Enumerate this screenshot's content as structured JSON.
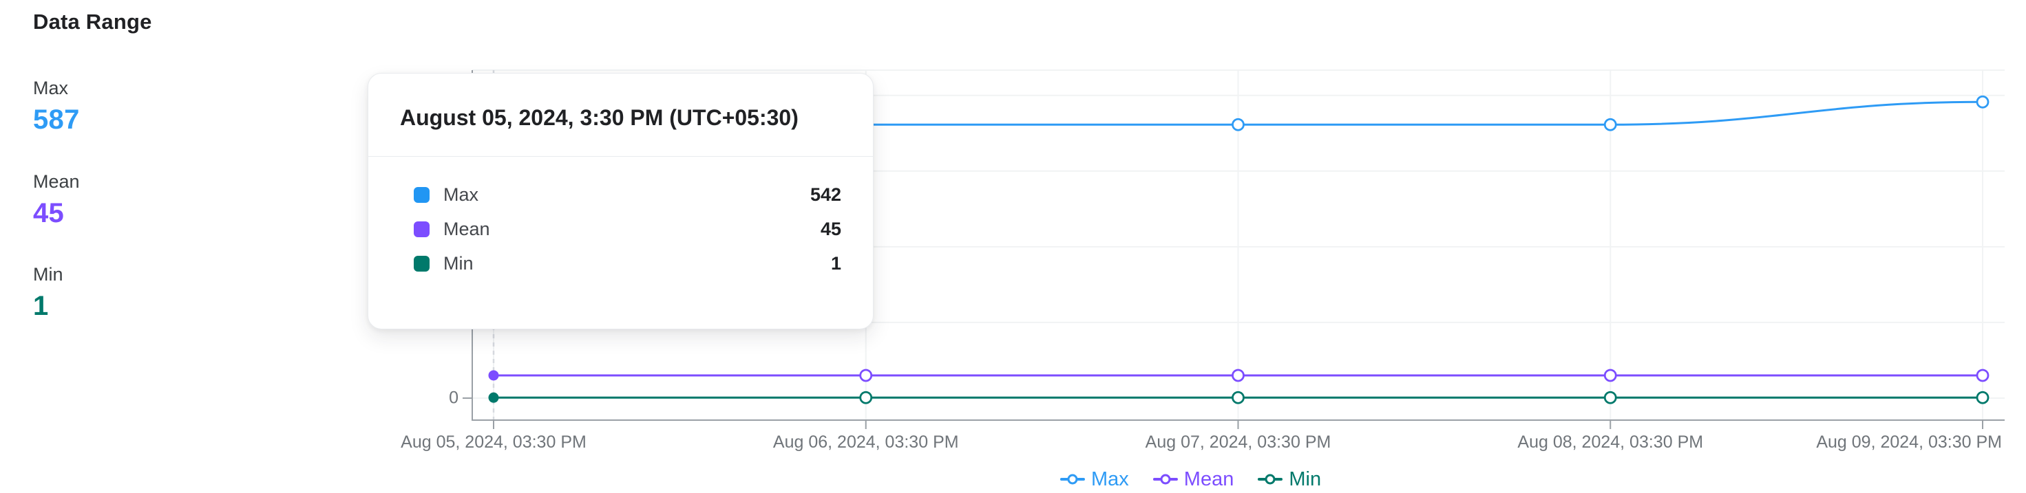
{
  "page": {
    "title": "Data Range"
  },
  "stats": {
    "items": [
      {
        "label": "Max",
        "value": "587",
        "color": "#2E9BF5"
      },
      {
        "label": "Mean",
        "value": "45",
        "color": "#7C4DFF"
      },
      {
        "label": "Min",
        "value": "1",
        "color": "#00796B"
      }
    ]
  },
  "tooltip": {
    "title": "August 05, 2024, 3:30 PM (UTC+05:30)",
    "rows": [
      {
        "label": "Max",
        "value": "542",
        "color": "#2196F3"
      },
      {
        "label": "Mean",
        "value": "45",
        "color": "#7C4DFF"
      },
      {
        "label": "Min",
        "value": "1",
        "color": "#00796B"
      }
    ]
  },
  "chart_data": {
    "type": "line",
    "x_labels": [
      "Aug 05, 2024, 03:30 PM",
      "Aug 06, 2024, 03:30 PM",
      "Aug 07, 2024, 03:30 PM",
      "Aug 08, 2024, 03:30 PM",
      "Aug 09, 2024, 03:30 PM"
    ],
    "series": [
      {
        "name": "Max",
        "color": "#2E9BF5",
        "values": [
          542,
          542,
          542,
          542,
          587
        ]
      },
      {
        "name": "Mean",
        "color": "#7C4DFF",
        "values": [
          45,
          45,
          45,
          45,
          45
        ]
      },
      {
        "name": "Min",
        "color": "#00796B",
        "values": [
          1,
          1,
          1,
          1,
          1
        ]
      }
    ],
    "ylim": [
      0,
      650
    ],
    "y_gridline_step": 150,
    "visible_y_tick_labels": [
      "0"
    ],
    "grid": true,
    "legend_position": "bottom",
    "hovered_point_index": 0
  },
  "theme": {
    "axis_color": "#9AA0A6",
    "grid_color": "#F1F3F4",
    "hover_line_color": "#D7DADF",
    "axis_text_color": "#70757A",
    "text_dark": "#202124",
    "text_gray": "#3C4043",
    "background": "#FFFFFF"
  }
}
